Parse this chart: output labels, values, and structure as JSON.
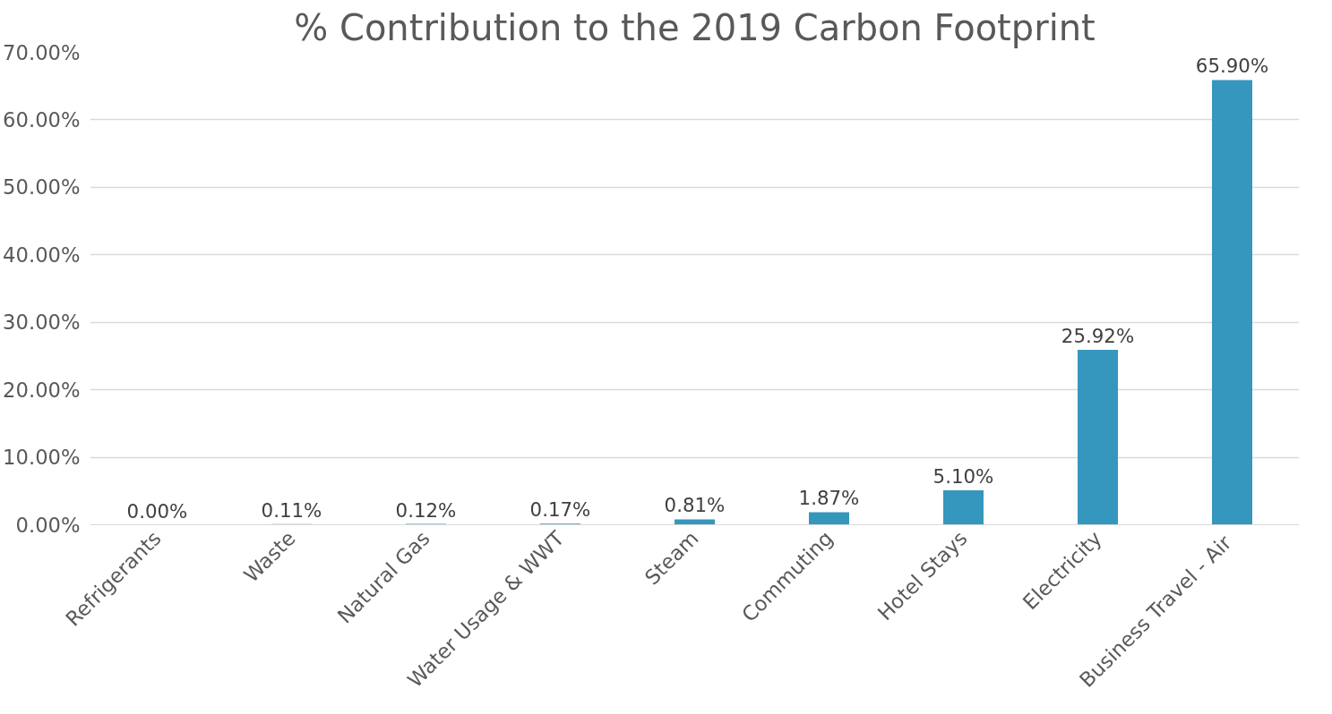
{
  "chart_data": {
    "type": "bar",
    "title": "% Contribution to the 2019 Carbon Footprint",
    "categories": [
      "Refrigerants",
      "Waste",
      "Natural Gas",
      "Water Usage & WWT",
      "Steam",
      "Commuting",
      "Hotel Stays",
      "Electricity",
      "Business Travel -  Air"
    ],
    "values": [
      0.0,
      0.11,
      0.12,
      0.17,
      0.81,
      1.87,
      5.1,
      25.92,
      65.9
    ],
    "value_labels": [
      "0.00%",
      "0.11%",
      "0.12%",
      "0.17%",
      "0.81%",
      "1.87%",
      "5.10%",
      "25.92%",
      "65.90%"
    ],
    "color": "#3596be",
    "ylim": [
      0,
      70
    ],
    "yticks": [
      {
        "value": 0,
        "label": "0.00%"
      },
      {
        "value": 10,
        "label": "10.00%"
      },
      {
        "value": 20,
        "label": "20.00%"
      },
      {
        "value": 30,
        "label": "30.00%"
      },
      {
        "value": 40,
        "label": "40.00%"
      },
      {
        "value": 50,
        "label": "50.00%"
      },
      {
        "value": 60,
        "label": "60.00%"
      },
      {
        "value": 70,
        "label": "70.00%"
      }
    ],
    "grid": "y"
  }
}
